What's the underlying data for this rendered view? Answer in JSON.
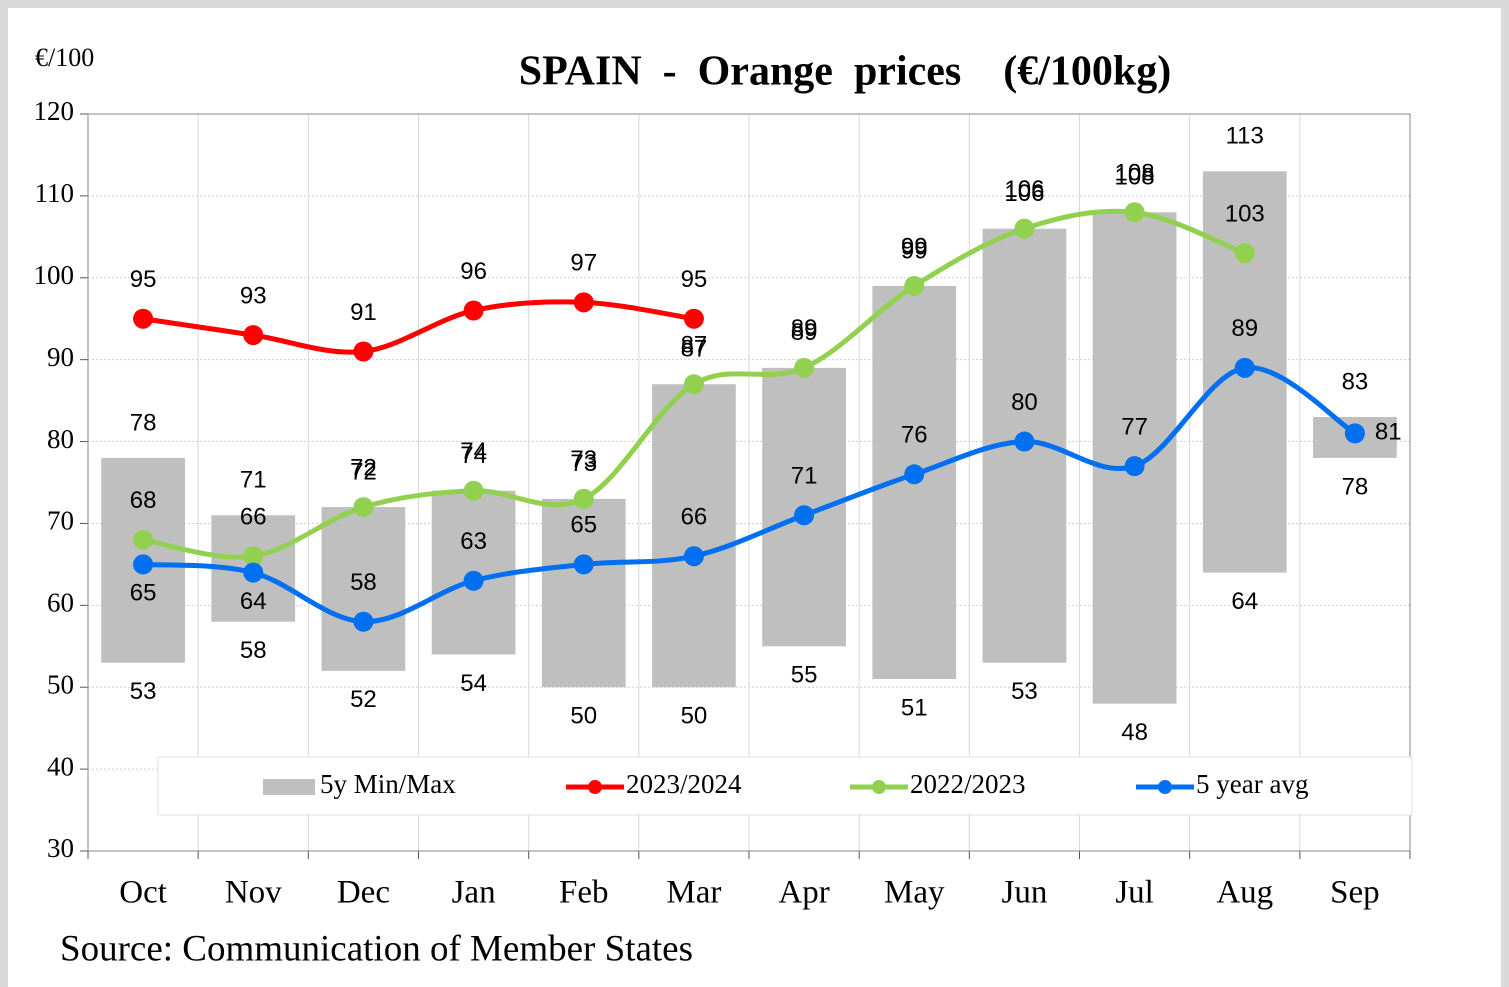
{
  "chart_data": {
    "type": "line",
    "title": "SPAIN  -  Orange  prices    (€/100kg)",
    "y_label": "€/100",
    "source": "Source: Communication of Member States",
    "categories": [
      "Oct",
      "Nov",
      "Dec",
      "Jan",
      "Feb",
      "Mar",
      "Apr",
      "May",
      "Jun",
      "Jul",
      "Aug",
      "Sep"
    ],
    "ylim": [
      30,
      120
    ],
    "yticks": [
      30,
      40,
      50,
      60,
      70,
      80,
      90,
      100,
      110,
      120
    ],
    "grid": true,
    "range": {
      "name": "5y Min/Max",
      "color": "#bfbfbf",
      "min": [
        53,
        58,
        52,
        54,
        50,
        50,
        55,
        51,
        53,
        48,
        64,
        78
      ],
      "max": [
        78,
        71,
        72,
        74,
        73,
        87,
        89,
        99,
        106,
        108,
        113,
        83
      ]
    },
    "series": [
      {
        "name": "2023/2024",
        "color": "#ff0000",
        "values": [
          95,
          93,
          91,
          96,
          97,
          95,
          null,
          null,
          null,
          null,
          null,
          null
        ]
      },
      {
        "name": "2022/2023",
        "color": "#92d050",
        "values": [
          68,
          66,
          72,
          74,
          73,
          87,
          89,
          99,
          106,
          108,
          103,
          null
        ]
      },
      {
        "name": "5 year avg",
        "color": "#0070f0",
        "values": [
          65,
          64,
          58,
          63,
          65,
          66,
          71,
          76,
          80,
          77,
          89,
          81
        ]
      }
    ]
  }
}
